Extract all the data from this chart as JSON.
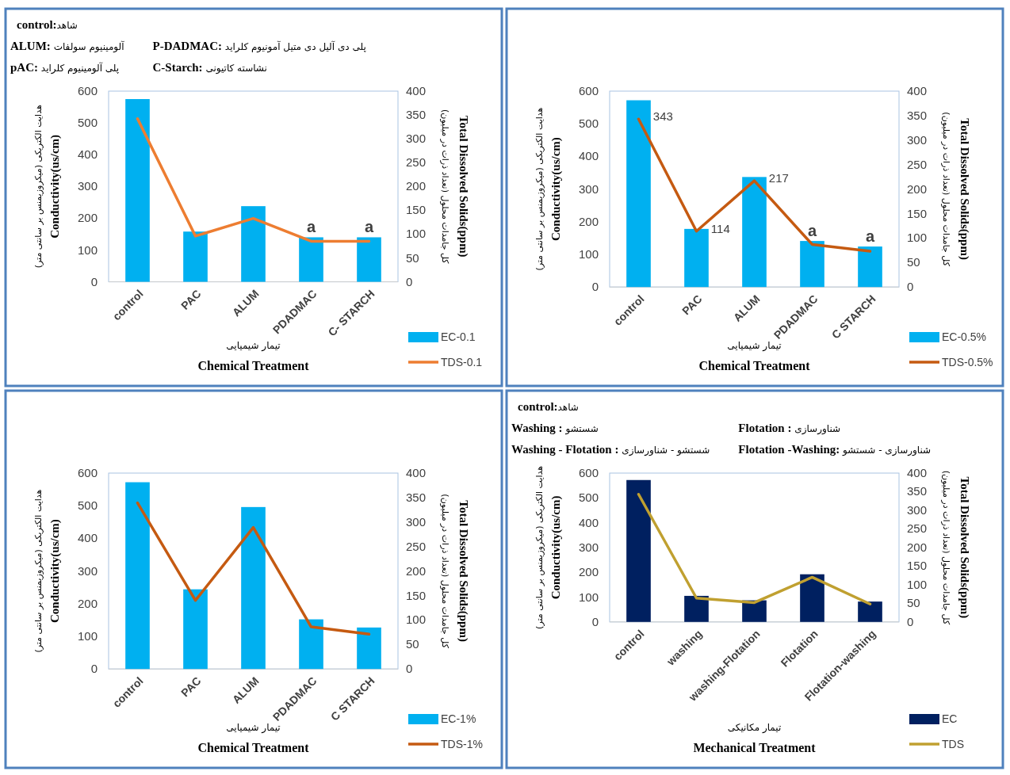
{
  "chart_data": [
    {
      "type": "bar",
      "annotations": [
        "**control:**شاهد",
        "**ALUM:** آلومینیوم سولفات",
        "**P-DADMAC:** پلی دی آلیل دی متیل آمونیوم کلراید",
        "**pAC:** پلی آلومینیوم کلراید",
        "**C-Starch:** نشاسته کاتیونی",
        {
          "text": "a",
          "x": "PDADMAC",
          "y": 140
        },
        {
          "text": "a",
          "x": "C- STARCH",
          "y": 140
        }
      ],
      "xlabel": "تیمار شیمیایی\n**Chemical Treatment**",
      "ylabel": "هدایت الکتریکی (میکروزیمنس بر سانتی متر)\n**Conductivity(us/cm)**",
      "y2label": "کل جامدات محلول (تعداد ذرات در میلیون)\n**Total Dissolved Solids(ppm)**",
      "categories": [
        "control",
        "PAC",
        "ALUM",
        "PDADMAC",
        "C- STARCH"
      ],
      "series": [
        {
          "name": "EC-0.1",
          "color": "#00b0f0",
          "values": [
            575,
            158,
            238,
            140,
            140
          ]
        },
        {
          "name": "TDS-0.1",
          "type": "line",
          "axis": "y2",
          "color": "#ed7d31",
          "values": [
            342,
            96,
            133,
            85,
            85
          ]
        }
      ],
      "ylim": [
        0,
        600
      ],
      "yticks": [
        0,
        100,
        200,
        300,
        400,
        500,
        600
      ],
      "y2lim": [
        0,
        400
      ],
      "y2ticks": [
        0,
        50,
        100,
        150,
        200,
        250,
        300,
        350,
        400
      ],
      "legend": "bottom right"
    },
    {
      "type": "bar",
      "annotations": [
        {
          "text": "a",
          "x": "PDADMAC",
          "y": 141
        },
        {
          "text": "a",
          "x": "C STARCH",
          "y": 124
        }
      ],
      "xlabel": "تیمار شیمیایی\n**Chemical Treatment**",
      "ylabel": "هدایت الکتریکی (میکروزیمنس بر سانتی متر)\n**Conductivity(us/cm)**",
      "y2label": "کل جامدات محلول (تعداد ذرات در میلیون)\n**Total Dissolved Solids(ppm)**",
      "categories": [
        "control",
        "PAC",
        "ALUM",
        "PDADMAC",
        "C STARCH"
      ],
      "series": [
        {
          "name": "EC-0.5%",
          "color": "#00b0f0",
          "values": [
            572,
            178,
            337,
            141,
            124
          ]
        },
        {
          "name": "TDS-0.5%",
          "type": "line",
          "axis": "y2",
          "color": "#c55a11",
          "values": [
            343,
            114,
            217,
            87,
            73
          ],
          "value_labels": [
            "343",
            "114",
            "217",
            null,
            null
          ]
        }
      ],
      "ylim": [
        0,
        600
      ],
      "yticks": [
        0,
        100,
        200,
        300,
        400,
        500,
        600
      ],
      "y2lim": [
        0,
        400
      ],
      "y2ticks": [
        0,
        50,
        100,
        150,
        200,
        250,
        300,
        350,
        400
      ],
      "legend": "bottom right"
    },
    {
      "type": "bar",
      "xlabel": "تیمار شیمیایی\n**Chemical Treatment**",
      "ylabel": "هدایت الکتریکی (میکروزیمنس بر سانتی متر)\n**Conductivity(us/cm)**",
      "y2label": "کل جامدات محلول (تعداد ذرات در میلیون)\n**Total Dissolved Solids(ppm)**",
      "categories": [
        "control",
        "PAC",
        "ALUM",
        "PDADMAC",
        "C STARCH"
      ],
      "series": [
        {
          "name": "EC-1%",
          "color": "#00b0f0",
          "values": [
            572,
            244,
            496,
            152,
            127
          ]
        },
        {
          "name": "TDS-1%",
          "type": "line",
          "axis": "y2",
          "color": "#c55a11",
          "values": [
            339,
            140,
            289,
            86,
            71
          ]
        }
      ],
      "ylim": [
        0,
        600
      ],
      "yticks": [
        0,
        100,
        200,
        300,
        400,
        500,
        600
      ],
      "y2lim": [
        0,
        400
      ],
      "y2ticks": [
        0,
        50,
        100,
        150,
        200,
        250,
        300,
        350,
        400
      ],
      "legend": "bottom right"
    },
    {
      "type": "bar",
      "annotations": [
        "**control:**شاهد",
        "**Washing :** شستشو",
        "**Flotation :** شناورسازی",
        "**Washing - Flotation :** شستشو - شناورسازی",
        "**Flotation -Washing:** شناورسازی - شستشو"
      ],
      "xlabel": "تیمار مکانیکی\n**Mechanical Treatment**",
      "ylabel": "هدایت الکتریکی (میکروزیمنس بر سانتی متر)\n**Conductivity(us/cm)**",
      "y2label": "کل جامدات محلول (تعداد ذرات در میلیون)\n**Total Dissolved Solids(ppm)**",
      "categories": [
        "control",
        "washing",
        "washing-Flotation",
        "Flotation",
        "Flotation-washing"
      ],
      "series": [
        {
          "name": "EC",
          "color": "#002060",
          "values": [
            572,
            105,
            87,
            192,
            82
          ]
        },
        {
          "name": "TDS",
          "type": "line",
          "axis": "y2",
          "color": "#c0a030",
          "values": [
            343,
            64,
            52,
            120,
            48
          ]
        }
      ],
      "ylim": [
        0,
        600
      ],
      "yticks": [
        0,
        100,
        200,
        300,
        400,
        500,
        600
      ],
      "y2lim": [
        0,
        400
      ],
      "y2ticks": [
        0,
        50,
        100,
        150,
        200,
        250,
        300,
        350,
        400
      ],
      "legend": "bottom right"
    }
  ]
}
